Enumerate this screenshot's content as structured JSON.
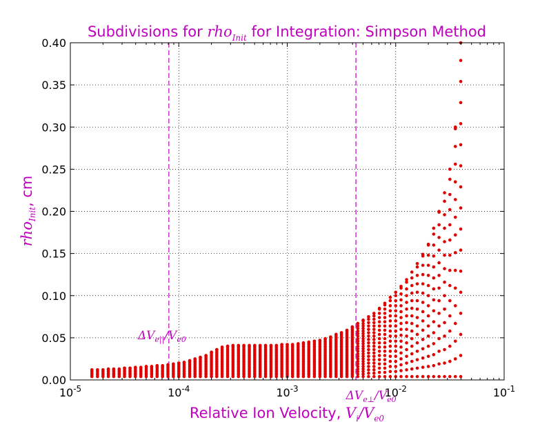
{
  "chart_data": {
    "type": "scatter",
    "title": {
      "prefix": "Subdivisions for ",
      "math": "rho",
      "math_sub": "Init",
      "suffix": " for Integration: Simpson Method"
    },
    "xlabel": {
      "text": "Relative Ion Velocity, ",
      "math": "V",
      "math_sub": "i",
      "math_sep": "/",
      "math2": "V",
      "math2_sub": "e0"
    },
    "ylabel": {
      "math": "rho",
      "math_sub": "Init",
      "suffix": ", cm"
    },
    "x_scale": "log",
    "xlim": [
      1e-05,
      0.1
    ],
    "ylim": [
      0,
      0.4
    ],
    "grid": true,
    "colors": {
      "title": "#bf00bf",
      "points": "#e00000",
      "vline": "#bf00bf"
    },
    "x_ticks": [
      {
        "value": 1e-05,
        "base": "10",
        "exp": "-5"
      },
      {
        "value": 0.0001,
        "base": "10",
        "exp": "-4"
      },
      {
        "value": 0.001,
        "base": "10",
        "exp": "-3"
      },
      {
        "value": 0.01,
        "base": "10",
        "exp": "-2"
      },
      {
        "value": 0.1,
        "base": "10",
        "exp": "-1"
      }
    ],
    "y_ticks": [
      {
        "value": 0,
        "label": "0.00"
      },
      {
        "value": 0.05,
        "label": "0.05"
      },
      {
        "value": 0.1,
        "label": "0.10"
      },
      {
        "value": 0.15,
        "label": "0.15"
      },
      {
        "value": 0.2,
        "label": "0.20"
      },
      {
        "value": 0.25,
        "label": "0.25"
      },
      {
        "value": 0.3,
        "label": "0.30"
      },
      {
        "value": 0.35,
        "label": "0.35"
      },
      {
        "value": 0.4,
        "label": "0.40"
      }
    ],
    "vlines": [
      {
        "x": 8.1e-05,
        "label_math": "ΔV",
        "label_sub": "e||",
        "label_sep": "/",
        "label_math2": "V",
        "label_sub2": "e0",
        "label_position": "left-middle"
      },
      {
        "x": 0.0043,
        "label_math": "ΔV",
        "label_sub": "e⊥",
        "label_sep": "/",
        "label_math2": "V",
        "label_sub2": "e0",
        "label_position": "bottom"
      }
    ],
    "series": [
      {
        "points_description": "columns of points; each column spans rho from ~0.004 up to max_rho at the given x",
        "x": [
          1.58e-05,
          1.78e-05,
          2e-05,
          2.24e-05,
          2.51e-05,
          2.82e-05,
          3.16e-05,
          3.55e-05,
          3.98e-05,
          4.47e-05,
          5.01e-05,
          5.62e-05,
          6.31e-05,
          7.08e-05,
          7.94e-05,
          8.91e-05,
          0.0001,
          0.000112,
          0.000126,
          0.000141,
          0.000158,
          0.000178,
          0.0002,
          0.000224,
          0.000251,
          0.000282,
          0.000316,
          0.000355,
          0.000398,
          0.000447,
          0.000501,
          0.000562,
          0.000631,
          0.000708,
          0.000794,
          0.000891,
          0.001,
          0.00112,
          0.00126,
          0.00141,
          0.00158,
          0.00178,
          0.002,
          0.00224,
          0.00251,
          0.00282,
          0.00316,
          0.00355,
          0.00398,
          0.00447,
          0.00501,
          0.00562,
          0.00631,
          0.00708,
          0.00794,
          0.00891,
          0.01,
          0.0112,
          0.0126,
          0.0141,
          0.0158,
          0.0178,
          0.02,
          0.0224,
          0.0251,
          0.0282,
          0.0316,
          0.0355,
          0.0398
        ],
        "max_rho": [
          0.012,
          0.012,
          0.012,
          0.013,
          0.013,
          0.013,
          0.014,
          0.014,
          0.015,
          0.015,
          0.016,
          0.016,
          0.017,
          0.017,
          0.018,
          0.019,
          0.02,
          0.021,
          0.023,
          0.025,
          0.027,
          0.029,
          0.033,
          0.036,
          0.039,
          0.04,
          0.041,
          0.041,
          0.041,
          0.041,
          0.041,
          0.041,
          0.041,
          0.041,
          0.041,
          0.042,
          0.042,
          0.042,
          0.043,
          0.044,
          0.045,
          0.046,
          0.047,
          0.049,
          0.051,
          0.054,
          0.056,
          0.059,
          0.063,
          0.067,
          0.071,
          0.075,
          0.079,
          0.085,
          0.091,
          0.098,
          0.104,
          0.111,
          0.119,
          0.128,
          0.138,
          0.149,
          0.161,
          0.18,
          0.2,
          0.222,
          0.25,
          0.3,
          0.4
        ],
        "step_rho": [
          0.002,
          0.002,
          0.002,
          0.002,
          0.002,
          0.002,
          0.002,
          0.002,
          0.002,
          0.002,
          0.002,
          0.002,
          0.002,
          0.002,
          0.002,
          0.002,
          0.002,
          0.002,
          0.002,
          0.002,
          0.002,
          0.002,
          0.002,
          0.002,
          0.002,
          0.002,
          0.002,
          0.002,
          0.002,
          0.002,
          0.002,
          0.002,
          0.002,
          0.002,
          0.002,
          0.002,
          0.002,
          0.002,
          0.002,
          0.002,
          0.002,
          0.002,
          0.002,
          0.002,
          0.002,
          0.002,
          0.002,
          0.002,
          0.002,
          0.003,
          0.003,
          0.004,
          0.004,
          0.005,
          0.005,
          0.006,
          0.006,
          0.007,
          0.008,
          0.009,
          0.01,
          0.011,
          0.012,
          0.013,
          0.015,
          0.016,
          0.018,
          0.021,
          0.025
        ]
      }
    ]
  }
}
